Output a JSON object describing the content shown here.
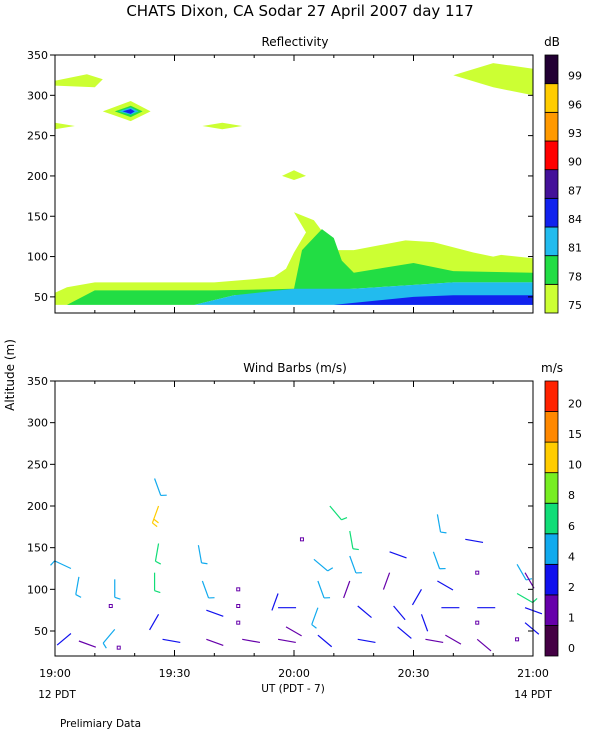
{
  "title": "CHATS Dixon, CA  Sodar  27 April 2007  day 117",
  "shared_ylabel": "Altitude (m)",
  "xlabel": "UT  (PDT - 7)",
  "x_ticks": [
    "19:00",
    "19:30",
    "20:00",
    "20:30",
    "21:00"
  ],
  "left_time_label": "12 PDT",
  "right_time_label": "14 PDT",
  "footnote": "Prelimiary Data",
  "chart_data": [
    {
      "type": "heatmap",
      "title": "Reflectivity",
      "ylabel": "Altitude (m)",
      "x_range_minutes_after_1900_UT": [
        0,
        120
      ],
      "ylim": [
        30,
        350
      ],
      "y_ticks": [
        50,
        100,
        150,
        200,
        250,
        300,
        350
      ],
      "colorbar": {
        "unit": "dB",
        "levels": [
          75,
          78,
          81,
          84,
          87,
          90,
          93,
          96,
          99
        ],
        "colors": [
          "#ccff33",
          "#22dd44",
          "#22bbee",
          "#1122ee",
          "#441199",
          "#ff0000",
          "#ff9900",
          "#ffcc00",
          "#220033"
        ]
      },
      "regions": [
        {
          "level": 75,
          "points": [
            [
              0,
              40
            ],
            [
              0,
              55
            ],
            [
              3,
              62
            ],
            [
              10,
              68
            ],
            [
              40,
              68
            ],
            [
              50,
              72
            ],
            [
              55,
              75
            ],
            [
              58,
              85
            ],
            [
              60,
              105
            ],
            [
              63,
              130
            ],
            [
              60,
              155
            ],
            [
              65,
              145
            ],
            [
              68,
              125
            ],
            [
              70,
              108
            ],
            [
              75,
              108
            ],
            [
              88,
              120
            ],
            [
              95,
              118
            ],
            [
              105,
              105
            ],
            [
              110,
              100
            ],
            [
              112,
              102
            ],
            [
              120,
              98
            ],
            [
              120,
              75
            ],
            [
              100,
              72
            ],
            [
              80,
              68
            ],
            [
              70,
              60
            ],
            [
              40,
              55
            ],
            [
              10,
              45
            ],
            [
              5,
              40
            ]
          ]
        },
        {
          "level": 78,
          "points": [
            [
              3,
              40
            ],
            [
              10,
              58
            ],
            [
              40,
              58
            ],
            [
              60,
              60
            ],
            [
              62,
              108
            ],
            [
              67,
              134
            ],
            [
              70,
              123
            ],
            [
              72,
              95
            ],
            [
              75,
              80
            ],
            [
              90,
              92
            ],
            [
              100,
              82
            ],
            [
              120,
              80
            ],
            [
              120,
              68
            ],
            [
              100,
              68
            ],
            [
              75,
              60
            ],
            [
              45,
              52
            ],
            [
              35,
              40
            ]
          ]
        },
        {
          "level": 81,
          "points": [
            [
              35,
              40
            ],
            [
              45,
              52
            ],
            [
              60,
              60
            ],
            [
              75,
              60
            ],
            [
              100,
              68
            ],
            [
              120,
              68
            ],
            [
              120,
              40
            ]
          ]
        },
        {
          "level": 84,
          "points": [
            [
              70,
              40
            ],
            [
              90,
              50
            ],
            [
              100,
              52
            ],
            [
              120,
              52
            ],
            [
              120,
              40
            ]
          ]
        },
        {
          "level": 75,
          "points": [
            [
              0,
              318
            ],
            [
              8,
              326
            ],
            [
              12,
              320
            ],
            [
              10,
              310
            ],
            [
              0,
              312
            ]
          ]
        },
        {
          "level": 75,
          "points": [
            [
              0,
              258
            ],
            [
              5,
              262
            ],
            [
              0,
              266
            ]
          ]
        },
        {
          "level": 75,
          "points": [
            [
              12,
              280
            ],
            [
              19,
              293
            ],
            [
              24,
              280
            ],
            [
              19,
              268
            ]
          ]
        },
        {
          "level": 78,
          "points": [
            [
              15,
              280
            ],
            [
              19,
              287
            ],
            [
              22,
              280
            ],
            [
              19,
              273
            ]
          ]
        },
        {
          "level": 81,
          "points": [
            [
              16,
              280
            ],
            [
              19,
              285
            ],
            [
              21,
              280
            ],
            [
              19,
              276
            ]
          ]
        },
        {
          "level": 84,
          "points": [
            [
              17,
              280
            ],
            [
              19,
              283
            ],
            [
              20,
              280
            ],
            [
              19,
              277
            ]
          ]
        },
        {
          "level": 75,
          "points": [
            [
              37,
              262
            ],
            [
              42,
              266
            ],
            [
              47,
              262
            ],
            [
              42,
              258
            ]
          ]
        },
        {
          "level": 75,
          "points": [
            [
              57,
              200
            ],
            [
              60,
              207
            ],
            [
              63,
              200
            ],
            [
              60,
              195
            ]
          ]
        },
        {
          "level": 75,
          "points": [
            [
              100,
              325
            ],
            [
              110,
              340
            ],
            [
              120,
              333
            ],
            [
              120,
              300
            ],
            [
              110,
              310
            ]
          ]
        }
      ]
    },
    {
      "type": "scatter",
      "title": "Wind Barbs (m/s)",
      "ylabel": "Altitude (m)",
      "x_range_minutes_after_1900_UT": [
        0,
        120
      ],
      "ylim": [
        20,
        350
      ],
      "y_ticks": [
        50,
        100,
        150,
        200,
        250,
        300,
        350
      ],
      "colorbar": {
        "unit": "m/s",
        "levels": [
          0,
          1,
          2,
          4,
          6,
          8,
          10,
          15,
          20
        ],
        "colors": [
          "#440044",
          "#6600aa",
          "#1111ee",
          "#11aaee",
          "#11dd77",
          "#77ee22",
          "#ffcc00",
          "#ff8800",
          "#ff2200"
        ]
      },
      "barbs": [
        [
          4,
          125,
          295,
          4
        ],
        [
          6,
          115,
          190,
          5
        ],
        [
          4,
          47,
          230,
          2
        ],
        [
          6,
          38,
          110,
          1
        ],
        [
          15,
          112,
          180,
          5
        ],
        [
          14,
          80,
          0,
          0
        ],
        [
          15,
          52,
          220,
          5
        ],
        [
          16,
          30,
          200,
          0
        ],
        [
          25,
          233,
          160,
          5
        ],
        [
          26,
          200,
          200,
          10
        ],
        [
          26,
          155,
          190,
          6
        ],
        [
          25,
          120,
          180,
          6
        ],
        [
          26,
          70,
          210,
          3
        ],
        [
          27,
          40,
          100,
          2
        ],
        [
          36,
          153,
          170,
          5
        ],
        [
          37,
          110,
          160,
          5
        ],
        [
          38,
          75,
          110,
          2
        ],
        [
          38,
          40,
          110,
          1
        ],
        [
          46,
          100,
          0,
          0
        ],
        [
          46,
          80,
          0,
          0
        ],
        [
          46,
          60,
          0,
          0
        ],
        [
          47,
          40,
          100,
          1
        ],
        [
          56,
          95,
          200,
          2
        ],
        [
          56,
          78,
          90,
          2
        ],
        [
          56,
          40,
          100,
          1
        ],
        [
          58,
          55,
          120,
          1
        ],
        [
          65,
          136,
          130,
          4
        ],
        [
          66,
          110,
          160,
          5
        ],
        [
          66,
          78,
          200,
          4
        ],
        [
          66,
          45,
          130,
          2
        ],
        [
          62,
          160,
          0,
          0
        ],
        [
          69,
          200,
          140,
          6
        ],
        [
          74,
          170,
          170,
          6
        ],
        [
          74,
          140,
          160,
          4
        ],
        [
          74,
          110,
          200,
          1
        ],
        [
          76,
          80,
          130,
          2
        ],
        [
          76,
          40,
          100,
          2
        ],
        [
          84,
          145,
          110,
          2
        ],
        [
          84,
          120,
          200,
          1
        ],
        [
          85,
          80,
          140,
          2
        ],
        [
          86,
          55,
          130,
          2
        ],
        [
          92,
          100,
          210,
          2
        ],
        [
          92,
          70,
          160,
          2
        ],
        [
          93,
          40,
          100,
          1
        ],
        [
          96,
          190,
          170,
          4
        ],
        [
          95,
          145,
          160,
          4
        ],
        [
          96,
          110,
          120,
          2
        ],
        [
          97,
          78,
          90,
          2
        ],
        [
          98,
          45,
          120,
          1
        ],
        [
          103,
          160,
          100,
          2
        ],
        [
          106,
          120,
          0,
          0
        ],
        [
          106,
          78,
          90,
          2
        ],
        [
          106,
          40,
          130,
          1
        ],
        [
          106,
          60,
          0,
          0
        ],
        [
          116,
          130,
          150,
          5
        ],
        [
          116,
          95,
          120,
          6
        ],
        [
          118,
          78,
          110,
          2
        ],
        [
          116,
          40,
          0,
          0
        ],
        [
          118,
          60,
          130,
          2
        ],
        [
          118,
          120,
          150,
          1
        ]
      ]
    }
  ]
}
